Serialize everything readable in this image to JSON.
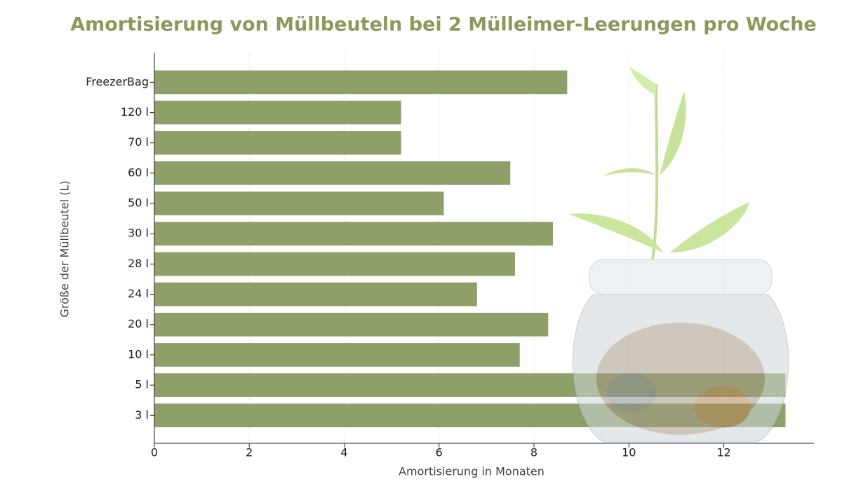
{
  "chart_data": {
    "type": "hbar",
    "title": "Amortisierung von Müllbeuteln bei 2 Mülleimer-Leerungen pro Woche",
    "x_label": "Amortisierung in Monaten",
    "y_label": "Größe der Müllbeutel (L)",
    "categories": [
      "FreezerBag",
      "120 l",
      "70 l",
      "60 l",
      "50 l",
      "30 l",
      "28 l",
      "24 l",
      "20 l",
      "10 l",
      "5 l",
      "3 l"
    ],
    "values": [
      8.7,
      5.2,
      5.2,
      7.5,
      6.1,
      8.4,
      7.6,
      6.8,
      8.3,
      7.7,
      13.3,
      13.3
    ],
    "color": "#8f9f68",
    "xlim": [
      0,
      13.9
    ],
    "xticks": [
      0,
      2,
      4,
      6,
      8,
      10,
      12
    ],
    "grid": true
  }
}
